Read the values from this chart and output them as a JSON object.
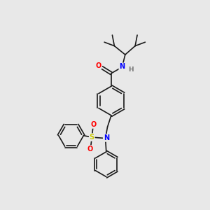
{
  "bg_color": "#e8e8e8",
  "bond_color": "#1a1a1a",
  "atom_colors": {
    "O": "#ff0000",
    "N": "#0000ff",
    "S": "#cccc00",
    "H": "#777777",
    "C": "#1a1a1a"
  }
}
